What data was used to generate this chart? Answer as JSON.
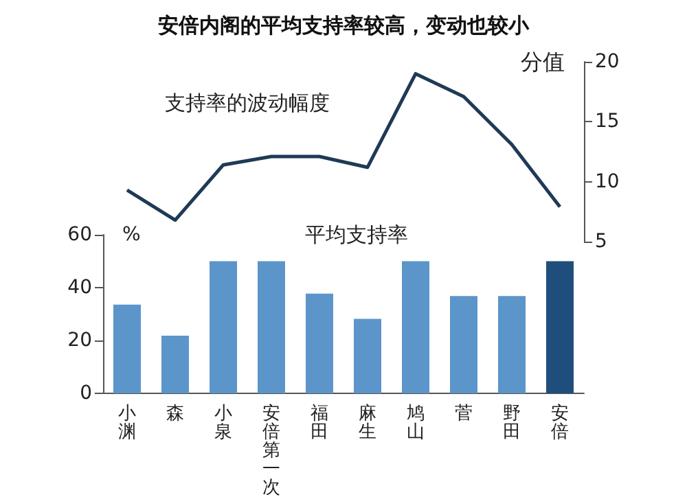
{
  "chart_data": [
    {
      "type": "line",
      "title": "安倍内阁的平均支持率较高，变动也较小",
      "ylabel": "分值",
      "annotations": [
        "支持率的波动幅度"
      ],
      "categories": [
        "小渊",
        "森",
        "小泉",
        "安倍第一次",
        "福田",
        "麻生",
        "鸠山",
        "菅",
        "野田",
        "安倍"
      ],
      "series": [
        {
          "color": "#1f3a56",
          "values": [
            9.3,
            6.8,
            11.4,
            12.1,
            12.1,
            11.2,
            19.0,
            17.1,
            13.1,
            7.9
          ]
        }
      ],
      "ylim": [
        5,
        20
      ],
      "yticks": [
        5,
        10,
        15,
        20
      ],
      "tick_labels": "y",
      "marker": "none",
      "grid": false
    },
    {
      "type": "bar",
      "ylabel": "%",
      "annotations": [
        "平均支持率"
      ],
      "categories": [
        "小渊",
        "森",
        "小泉",
        "安倍第一次",
        "福田",
        "麻生",
        "鸠山",
        "菅",
        "野田",
        "安倍"
      ],
      "values": [
        33.6,
        21.8,
        50,
        50,
        37.7,
        28.2,
        50,
        36.8,
        36.8,
        50
      ],
      "colors": [
        "#5b95c9",
        "#5b95c9",
        "#5b95c9",
        "#5b95c9",
        "#5b95c9",
        "#5b95c9",
        "#5b95c9",
        "#5b95c9",
        "#5b95c9",
        "#1f4e7c"
      ],
      "ylim": [
        0,
        60
      ],
      "yticks": [
        0,
        20,
        40,
        60
      ],
      "grid": false
    }
  ]
}
